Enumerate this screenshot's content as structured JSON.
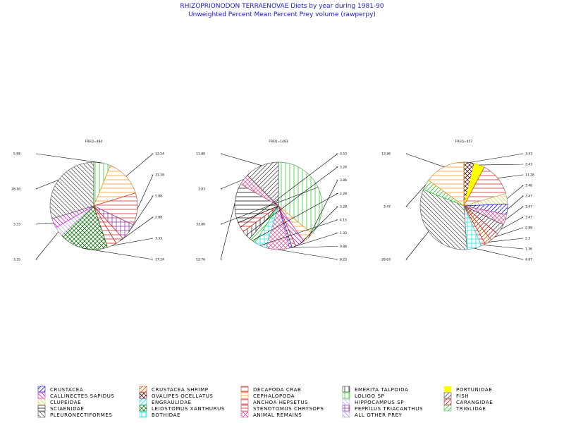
{
  "header": {
    "title": "RHIZOPRIONODON TERRAENOVAE Diets by year during 1981-90",
    "subtitle": "Unweighted Percent Mean Percent Prey  volume (rawperpy)"
  },
  "colors": {
    "CRUSTACEA": "#1a1ad0",
    "CRUSTACEA SHRIMP": "#c84a00",
    "DECAPODA CRAB": "#d03030",
    "EMERITA TALPOIDA": "#303030",
    "PORTUNIDAE": "#ffff00",
    "CALLINECTES SAPIDUS": "#d020d0",
    "OVALIPES OCELLATUS": "#501010",
    "CEPHALOPODA": "#ff9a20",
    "LOLIGO SP": "#30d030",
    "FISH": "#505050",
    "CLUPEIDAE": "#d0d060",
    "ENGRAULIDAE": "#30c8e0",
    "ANCHOA HEPSETUS": "#d04060",
    "HIPPOCAMPUS SP": "#b8a8e0",
    "CARANGIDAE": "#c02020",
    "SCIAENIDAE": "#101010",
    "LEIOSTOMUS XANTHURUS": "#107010",
    "STENOTOMUS CHRYSOPS": "#d02020",
    "PEPRILUS TRIACANTHUS": "#9040a0",
    "TRIGLIDAE": "#30c830",
    "PLEURONECTIFORMES": "#606060",
    "BOTHIDAE": "#30e0e0",
    "ANIMAL REMAINS": "#e060a0",
    "ALL OTHER PREY": "#a0a0e0"
  },
  "legend": [
    {
      "label": "CRUSTACEA",
      "pattern": "diag-up"
    },
    {
      "label": "CRUSTACEA SHRIMP",
      "pattern": "diag-up"
    },
    {
      "label": "DECAPODA CRAB",
      "pattern": "horiz"
    },
    {
      "label": "EMERITA TALPOIDA",
      "pattern": "vert"
    },
    {
      "label": "PORTUNIDAE",
      "pattern": "solid"
    },
    {
      "label": "CALLINECTES SAPIDUS",
      "pattern": "diag-down"
    },
    {
      "label": "OVALIPES OCELLATUS",
      "pattern": "cross-diag"
    },
    {
      "label": "CEPHALOPODA",
      "pattern": "horiz"
    },
    {
      "label": "LOLIGO SP",
      "pattern": "vert"
    },
    {
      "label": "FISH",
      "pattern": "diag-up"
    },
    {
      "label": "CLUPEIDAE",
      "pattern": "diag-down"
    },
    {
      "label": "ENGRAULIDAE",
      "pattern": "diag-up"
    },
    {
      "label": "ANCHOA HEPSETUS",
      "pattern": "horiz"
    },
    {
      "label": "HIPPOCAMPUS SP",
      "pattern": "diag-down"
    },
    {
      "label": "CARANGIDAE",
      "pattern": "diag-up"
    },
    {
      "label": "SCIAENIDAE",
      "pattern": "horiz"
    },
    {
      "label": "LEIOSTOMUS XANTHURUS",
      "pattern": "cross-diag"
    },
    {
      "label": "STENOTOMUS CHRYSOPS",
      "pattern": "horiz"
    },
    {
      "label": "PEPRILUS TRIACANTHUS",
      "pattern": "cross-grid"
    },
    {
      "label": "TRIGLIDAE",
      "pattern": "diag-up"
    },
    {
      "label": "PLEURONECTIFORMES",
      "pattern": "diag-down"
    },
    {
      "label": "BOTHIDAE",
      "pattern": "cross-grid"
    },
    {
      "label": "ANIMAL REMAINS",
      "pattern": "cross-diag"
    },
    {
      "label": "ALL OTHER PREY",
      "pattern": "diag-down"
    }
  ],
  "chart_data": [
    {
      "type": "pie",
      "title": "FREQ=484",
      "slices": [
        {
          "name": "LOLIGO SP",
          "value": 5.88,
          "label": "5.88",
          "side": "left"
        },
        {
          "name": "CEPHALOPODA",
          "value": 13.24,
          "label": "13.24",
          "side": "right"
        },
        {
          "name": "DECAPODA CRAB",
          "value": 11.28,
          "label": "11.28",
          "side": "right"
        },
        {
          "name": "PEPRILUS TRIACANTHUS",
          "value": 5.88,
          "label": "5.88",
          "side": "right"
        },
        {
          "name": "DECAPODA CRAB",
          "value": 2.88,
          "label": "2.88",
          "side": "right"
        },
        {
          "name": "STENOTOMUS CHRYSOPS",
          "value": 3.33,
          "label": "3.33",
          "side": "right"
        },
        {
          "name": "LEIOSTOMUS XANTHURUS",
          "value": 17.24,
          "label": "17.24",
          "side": "right"
        },
        {
          "name": "HIPPOCAMPUS SP",
          "value": 3.35,
          "label": "3.35",
          "side": "left"
        },
        {
          "name": "CALLINECTES SAPIDUS",
          "value": 3.33,
          "label": "3.33",
          "side": "left"
        },
        {
          "name": "PLEURONECTIFORMES",
          "value": 28.16,
          "label": "28.16",
          "side": "left"
        }
      ]
    },
    {
      "type": "pie",
      "title": "FREQ=1483",
      "slices": [
        {
          "name": "LOLIGO SP",
          "value": 33.86,
          "label": "33.86",
          "side": "left"
        },
        {
          "name": "CEPHALOPODA",
          "value": 3.86,
          "label": "3.86",
          "side": "right"
        },
        {
          "name": "CALLINECTES SAPIDUS",
          "value": 3.28,
          "label": "3.28",
          "side": "right"
        },
        {
          "name": "STENOTOMUS CHRYSOPS",
          "value": 1.33,
          "label": "1.33",
          "side": "right"
        },
        {
          "name": "CRUSTACEA",
          "value": 0.88,
          "label": "0.88",
          "side": "right"
        },
        {
          "name": "ANIMAL REMAINS",
          "value": 8.23,
          "label": "8.23",
          "side": "right"
        },
        {
          "name": "BOTHIDAE",
          "value": 4.15,
          "label": "4.15",
          "side": "right"
        },
        {
          "name": "TRIGLIDAE",
          "value": 2.28,
          "label": "2.28",
          "side": "right"
        },
        {
          "name": "EMERITA TALPOIDA",
          "value": 3.24,
          "label": "3.24",
          "side": "right"
        },
        {
          "name": "STENOTOMUS CHRYSOPS",
          "value": 3.53,
          "label": "3.53",
          "side": "right"
        },
        {
          "name": "SCIAENIDAE",
          "value": 13.76,
          "label": "13.76",
          "side": "left"
        },
        {
          "name": "ANIMAL REMAINS",
          "value": 3.83,
          "label": "3.83",
          "side": "left"
        },
        {
          "name": "FISH",
          "value": 11.88,
          "label": "11.88",
          "side": "left"
        }
      ]
    },
    {
      "type": "pie",
      "title": "FREQ=457",
      "slices": [
        {
          "name": "OVALIPES OCELLATUS",
          "value": 3.43,
          "label": "3.43",
          "side": "right"
        },
        {
          "name": "PORTUNIDAE",
          "value": 3.43,
          "label": "3.43",
          "side": "right"
        },
        {
          "name": "DECAPODA CRAB",
          "value": 11.28,
          "label": "11.28",
          "side": "right"
        },
        {
          "name": "CLUPEIDAE",
          "value": 3.48,
          "label": "3.48",
          "side": "right"
        },
        {
          "name": "CRUSTACEA",
          "value": 3.47,
          "label": "3.47",
          "side": "right"
        },
        {
          "name": "ANIMAL REMAINS",
          "value": 3.47,
          "label": "3.47",
          "side": "right"
        },
        {
          "name": "FISH",
          "value": 3.47,
          "label": "3.47",
          "side": "right"
        },
        {
          "name": "CARANGIDAE",
          "value": 2.88,
          "label": "2.88",
          "side": "right"
        },
        {
          "name": "CRUSTACEA SHRIMP",
          "value": 2.3,
          "label": "2.3",
          "side": "right"
        },
        {
          "name": "STENOTOMUS CHRYSOPS",
          "value": 1.36,
          "label": "1.36",
          "side": "right"
        },
        {
          "name": "BOTHIDAE",
          "value": 4.87,
          "label": "4.87",
          "side": "right"
        },
        {
          "name": "PLEURONECTIFORMES",
          "value": 28.63,
          "label": "28.63",
          "side": "left"
        },
        {
          "name": "TRIGLIDAE",
          "value": 3.47,
          "label": "3.47",
          "side": "left"
        },
        {
          "name": "CEPHALOPODA",
          "value": 13.36,
          "label": "13.36",
          "side": "left"
        }
      ]
    }
  ]
}
